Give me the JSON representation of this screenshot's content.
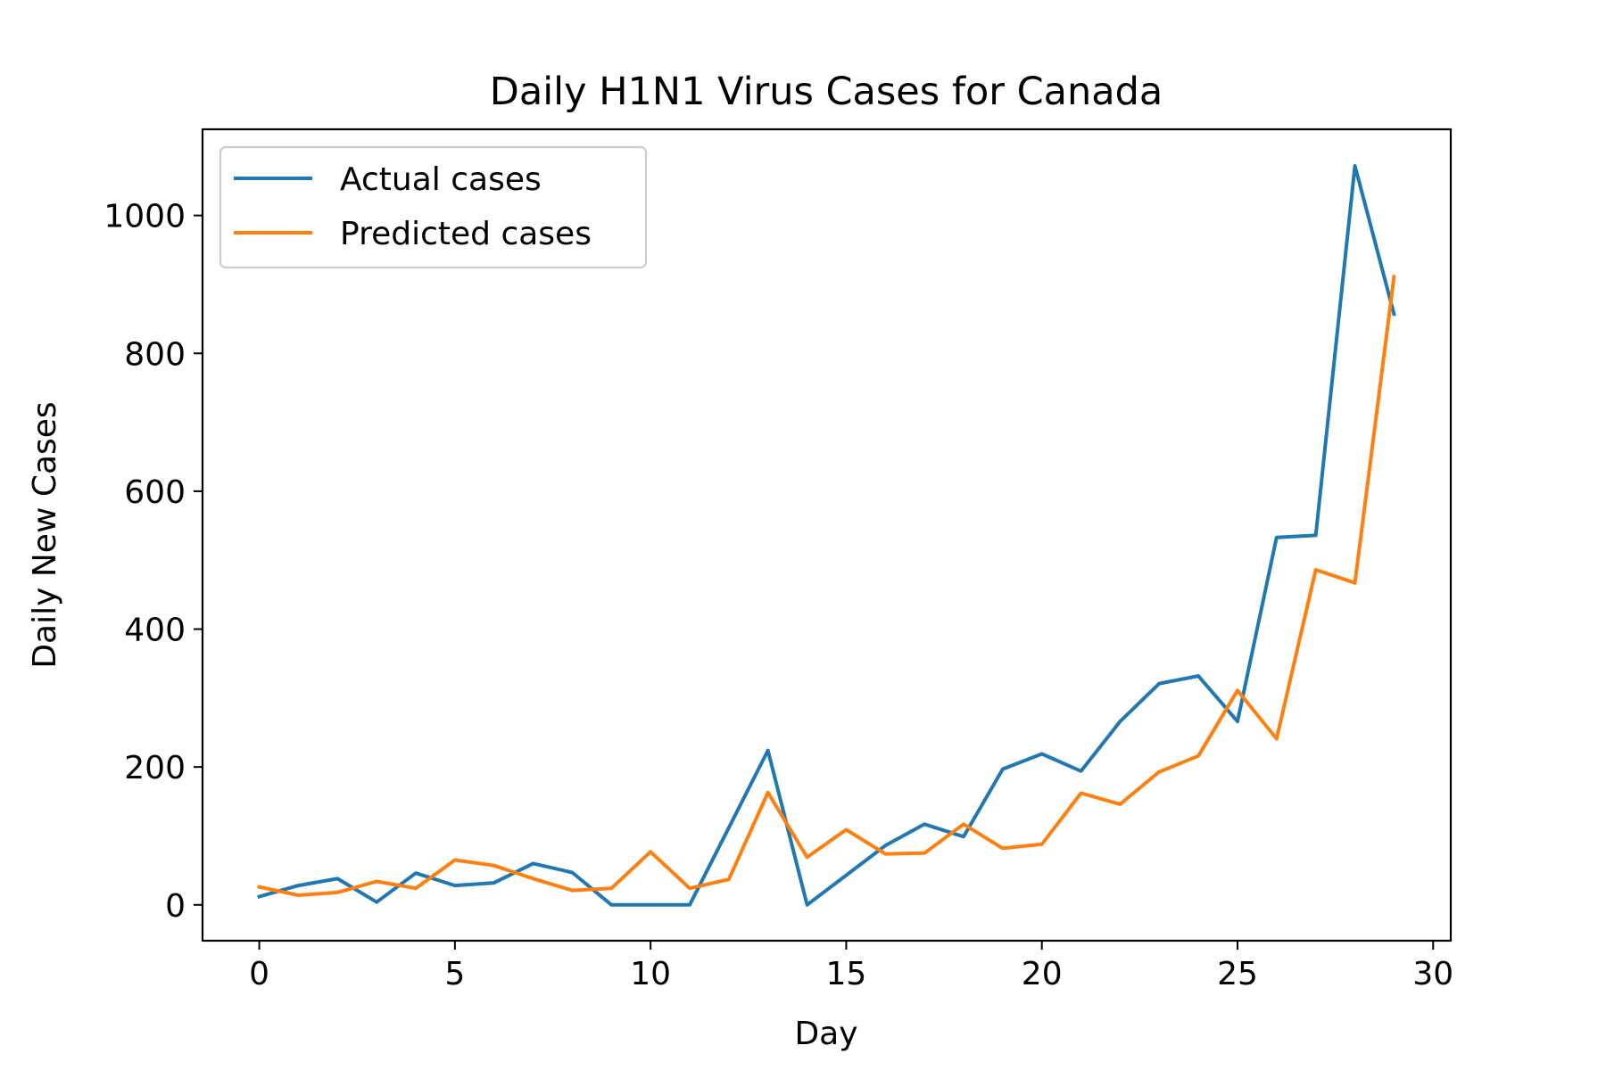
{
  "chart_data": {
    "type": "line",
    "title": "Daily H1N1 Virus Cases for Canada",
    "xlabel": "Day",
    "ylabel": "Daily New Cases",
    "xlim": [
      -1.45,
      30.45
    ],
    "ylim": [
      -52,
      1125
    ],
    "xticks": [
      0,
      5,
      10,
      15,
      20,
      25,
      30
    ],
    "yticks": [
      0,
      200,
      400,
      600,
      800,
      1000
    ],
    "grid": false,
    "legend_position": "upper-left",
    "x": [
      0,
      1,
      2,
      3,
      4,
      5,
      6,
      7,
      8,
      9,
      10,
      11,
      12,
      13,
      14,
      15,
      16,
      17,
      18,
      19,
      20,
      21,
      22,
      23,
      24,
      25,
      26,
      27,
      28,
      29
    ],
    "series": [
      {
        "name": "Actual cases",
        "color": "#1f77b4",
        "values": [
          12,
          28,
          38,
          4,
          46,
          28,
          32,
          60,
          47,
          0,
          0,
          0,
          112,
          224,
          0,
          43,
          86,
          117,
          99,
          197,
          219,
          194,
          266,
          321,
          332,
          266,
          533,
          536,
          1072,
          857
        ]
      },
      {
        "name": "Predicted cases",
        "color": "#ff7f0e",
        "values": [
          26,
          14,
          18,
          34,
          24,
          65,
          57,
          38,
          21,
          24,
          77,
          24,
          37,
          163,
          69,
          109,
          74,
          75,
          117,
          82,
          88,
          162,
          146,
          193,
          216,
          311,
          241,
          486,
          467,
          911
        ]
      }
    ]
  }
}
